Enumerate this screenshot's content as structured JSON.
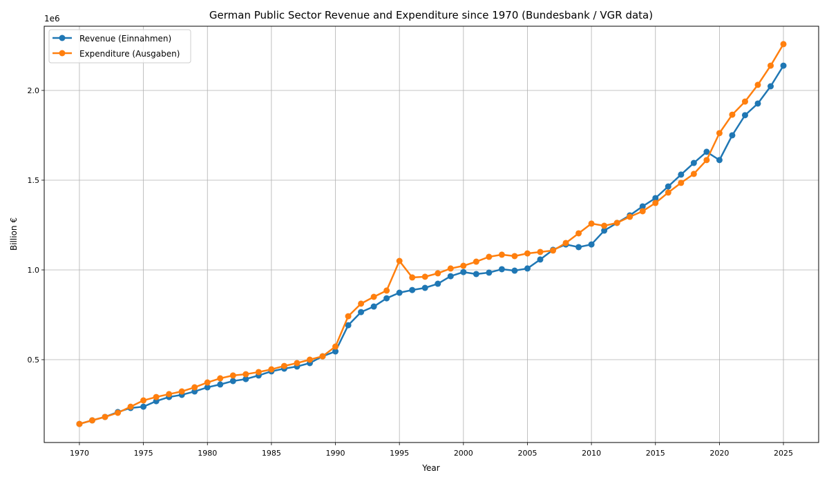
{
  "chart_data": {
    "type": "line",
    "title": "German Public Sector Revenue and Expenditure since 1970 (Bundesbank / VGR data)",
    "xlabel": "Year",
    "ylabel": "Billion €",
    "y_offset_label": "1e6",
    "xlim": [
      1967.25,
      2027.75
    ],
    "ylim": [
      38500,
      2357600
    ],
    "x_ticks": [
      1970,
      1975,
      1980,
      1985,
      1990,
      1995,
      2000,
      2005,
      2010,
      2015,
      2020,
      2025
    ],
    "x_tick_labels": [
      "1970",
      "1975",
      "1980",
      "1985",
      "1990",
      "1995",
      "2000",
      "2005",
      "2010",
      "2015",
      "2020",
      "2025"
    ],
    "y_ticks": [
      500000,
      1000000,
      1500000,
      2000000
    ],
    "y_tick_labels": [
      "0.5",
      "1.0",
      "1.5",
      "2.0"
    ],
    "grid": true,
    "legend_position": "top-left",
    "x": [
      1970,
      1971,
      1972,
      1973,
      1974,
      1975,
      1976,
      1977,
      1978,
      1979,
      1980,
      1981,
      1982,
      1983,
      1984,
      1985,
      1986,
      1987,
      1988,
      1989,
      1990,
      1991,
      1992,
      1993,
      1994,
      1995,
      1996,
      1997,
      1998,
      1999,
      2000,
      2001,
      2002,
      2003,
      2004,
      2005,
      2006,
      2007,
      2008,
      2009,
      2010,
      2011,
      2012,
      2013,
      2014,
      2015,
      2016,
      2017,
      2018,
      2019,
      2020,
      2021,
      2022,
      2023,
      2024,
      2025
    ],
    "series": [
      {
        "name": "Revenue (Einnahmen)",
        "color": "#1f77b4",
        "values": [
          142000,
          162000,
          181000,
          208000,
          231000,
          238000,
          269000,
          292000,
          304000,
          323000,
          346000,
          362000,
          381000,
          392000,
          412000,
          435000,
          450000,
          462000,
          481000,
          519000,
          546000,
          692000,
          765000,
          796000,
          842000,
          873000,
          888000,
          900000,
          923000,
          965000,
          988000,
          977000,
          985000,
          1004000,
          996000,
          1008000,
          1058000,
          1112000,
          1142000,
          1127000,
          1142000,
          1219000,
          1262000,
          1304000,
          1354000,
          1400000,
          1465000,
          1531000,
          1596000,
          1658000,
          1612000,
          1750000,
          1862000,
          1927000,
          2023000,
          2138000
        ]
      },
      {
        "name": "Expenditure (Ausgaben)",
        "color": "#ff7f0e",
        "values": [
          142000,
          162000,
          181000,
          204000,
          238000,
          273000,
          292000,
          308000,
          323000,
          346000,
          373000,
          396000,
          412000,
          419000,
          431000,
          446000,
          465000,
          481000,
          500000,
          519000,
          573000,
          742000,
          812000,
          850000,
          885000,
          1050000,
          958000,
          962000,
          981000,
          1008000,
          1023000,
          1046000,
          1073000,
          1085000,
          1077000,
          1092000,
          1100000,
          1108000,
          1150000,
          1204000,
          1258000,
          1246000,
          1262000,
          1296000,
          1327000,
          1373000,
          1431000,
          1485000,
          1535000,
          1612000,
          1762000,
          1865000,
          1938000,
          2031000,
          2138000,
          2258000
        ]
      }
    ]
  }
}
